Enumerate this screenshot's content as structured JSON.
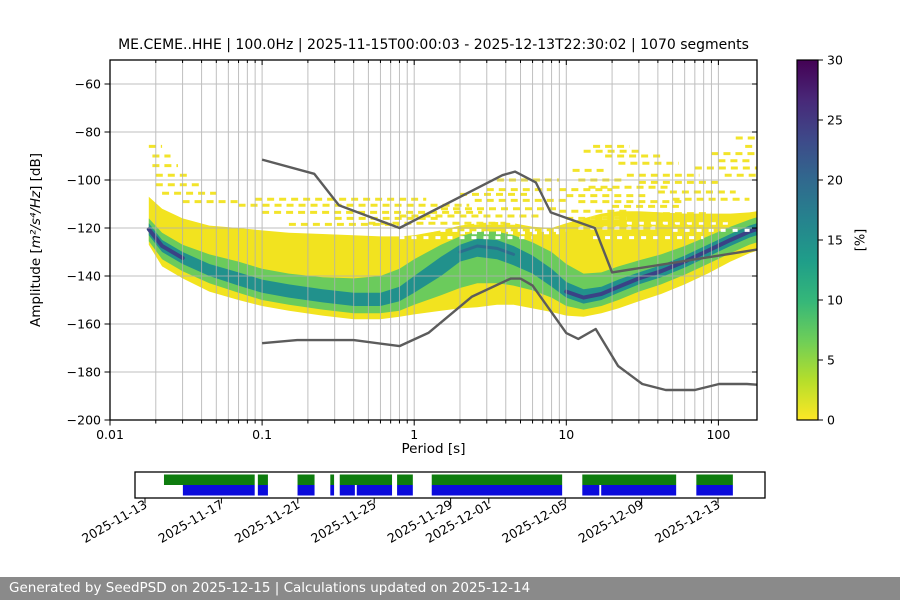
{
  "title": "ME.CEME..HHE | 100.0Hz | 2025-11-15T00:00:03 - 2025-12-13T22:30:02 | 1070 segments",
  "footer": {
    "text": "Generated by SeedPSD on 2025-12-15 | Calculations updated on 2025-12-14"
  },
  "chart_data": {
    "type": "heatmap",
    "title": "ME.CEME..HHE | 100.0Hz | 2025-11-15T00:00:03 - 2025-12-13T22:30:02 | 1070 segments",
    "xlabel": "Period [s]",
    "ylabel": "Amplitude [m²/s⁴/Hz] [dB]",
    "ylabel_parts": {
      "prefix": "Amplitude [",
      "math": "m²/s⁴/Hz",
      "suffix": "] [dB]"
    },
    "xscale": "log",
    "xlim": [
      0.01,
      179
    ],
    "ylim": [
      -200,
      -50
    ],
    "grid": true,
    "x_ticks": [
      {
        "v": 0.01,
        "label": "0.01"
      },
      {
        "v": 0.1,
        "label": "0.1"
      },
      {
        "v": 1,
        "label": "1"
      },
      {
        "v": 10,
        "label": "10"
      },
      {
        "v": 100,
        "label": "100"
      }
    ],
    "y_ticks": [
      {
        "v": -60,
        "label": "−60"
      },
      {
        "v": -80,
        "label": "−80"
      },
      {
        "v": -100,
        "label": "−100"
      },
      {
        "v": -120,
        "label": "−120"
      },
      {
        "v": -140,
        "label": "−140"
      },
      {
        "v": -160,
        "label": "−160"
      },
      {
        "v": -180,
        "label": "−180"
      },
      {
        "v": -200,
        "label": "−200"
      }
    ],
    "colorbar": {
      "label": "[%]",
      "min": 0,
      "max": 30,
      "ticks": [
        {
          "v": 0,
          "label": "0"
        },
        {
          "v": 5,
          "label": "5"
        },
        {
          "v": 10,
          "label": "10"
        },
        {
          "v": 15,
          "label": "15"
        },
        {
          "v": 20,
          "label": "20"
        },
        {
          "v": 25,
          "label": "25"
        },
        {
          "v": 30,
          "label": "30"
        }
      ],
      "colormap": "viridis_r",
      "gradient": [
        [
          0,
          "#fde725"
        ],
        [
          11,
          "#b5de2b"
        ],
        [
          22,
          "#6ece58"
        ],
        [
          33,
          "#35b779"
        ],
        [
          44,
          "#1f9e89"
        ],
        [
          56,
          "#26828e"
        ],
        [
          67,
          "#31688e"
        ],
        [
          78,
          "#3e4989"
        ],
        [
          89,
          "#482878"
        ],
        [
          100,
          "#440154"
        ]
      ]
    },
    "colors": {
      "yellow": "#f2e31f",
      "green": "#6bcb5c",
      "teal": "#21918c",
      "dark_core": "#3a4286",
      "mid_core": "#2a6f8e",
      "noise_model": "#5c5c5c",
      "grid": "#b0b0b0"
    },
    "psd_profile_columns": [
      "period_s",
      "yellow_top_db",
      "green_top_db",
      "teal_top_db",
      "mode_db",
      "teal_bot_db",
      "green_bot_db",
      "yellow_bot_db"
    ],
    "psd_profile": [
      [
        0.018,
        -107,
        -116,
        -118,
        -120.5,
        -123,
        -125.5,
        -127
      ],
      [
        0.022,
        -112,
        -122,
        -125,
        -127.5,
        -130,
        -133,
        -136
      ],
      [
        0.03,
        -116,
        -127,
        -130,
        -132.5,
        -135,
        -138,
        -141
      ],
      [
        0.045,
        -119,
        -131,
        -135,
        -137.5,
        -140,
        -143,
        -146.5
      ],
      [
        0.07,
        -120,
        -134,
        -138.5,
        -141.5,
        -144,
        -147,
        -150
      ],
      [
        0.1,
        -121,
        -137,
        -141.5,
        -144.5,
        -147,
        -150,
        -152.5
      ],
      [
        0.15,
        -122,
        -139,
        -143.5,
        -146.5,
        -149,
        -152,
        -154.5
      ],
      [
        0.25,
        -122.5,
        -140.5,
        -145.5,
        -148.5,
        -151,
        -154,
        -156.5
      ],
      [
        0.4,
        -123,
        -141,
        -147,
        -150,
        -152.5,
        -155.5,
        -158
      ],
      [
        0.6,
        -123.5,
        -140,
        -147,
        -150,
        -152.5,
        -155.5,
        -158
      ],
      [
        0.8,
        -123.5,
        -137,
        -144.5,
        -147.5,
        -150.5,
        -154.5,
        -157
      ],
      [
        1.0,
        -123,
        -133,
        -140,
        -143.5,
        -147,
        -152,
        -156
      ],
      [
        1.5,
        -121,
        -127,
        -132,
        -136,
        -140,
        -148,
        -154.5
      ],
      [
        2.0,
        -119,
        -123.5,
        -127,
        -130,
        -134,
        -145,
        -153.5
      ],
      [
        2.6,
        -118,
        -121.5,
        -124.5,
        -127.5,
        -132,
        -143,
        -153
      ],
      [
        3.5,
        -117.5,
        -121.5,
        -125,
        -128.5,
        -133,
        -143,
        -152
      ],
      [
        4.5,
        -118,
        -123,
        -127.5,
        -131,
        -135.5,
        -144,
        -152
      ],
      [
        6.0,
        -119.5,
        -126,
        -131.5,
        -135.5,
        -139,
        -146,
        -153.5
      ],
      [
        8.0,
        -120,
        -130,
        -137,
        -141.5,
        -144.5,
        -149,
        -155
      ],
      [
        10,
        -118,
        -135,
        -142.5,
        -146.5,
        -149,
        -152.5,
        -156.5
      ],
      [
        13,
        -116,
        -139,
        -145.5,
        -149,
        -151.5,
        -154,
        -157
      ],
      [
        17,
        -114,
        -138.5,
        -144.5,
        -147.5,
        -150,
        -152.5,
        -155.5
      ],
      [
        22,
        -113,
        -136,
        -141.5,
        -144.5,
        -147,
        -150,
        -153.5
      ],
      [
        30,
        -113,
        -133.5,
        -138.5,
        -141,
        -143.5,
        -146.5,
        -150.5
      ],
      [
        42,
        -113.5,
        -131,
        -135.5,
        -138,
        -140.5,
        -143.5,
        -147.5
      ],
      [
        60,
        -114,
        -127.5,
        -131.5,
        -134,
        -136.5,
        -139.5,
        -143.5
      ],
      [
        85,
        -114,
        -123.5,
        -127,
        -129.5,
        -132,
        -135,
        -139
      ],
      [
        120,
        -114,
        -119.5,
        -122.5,
        -125,
        -127.5,
        -130.5,
        -134
      ],
      [
        160,
        -113.5,
        -116.5,
        -119,
        -121.5,
        -124,
        -127,
        -130.5
      ],
      [
        179,
        -113,
        -115.5,
        -118,
        -120.5,
        -123,
        -126,
        -129.5
      ]
    ],
    "dark_core_segments": [
      [
        0.018,
        0.04
      ],
      [
        8.5,
        179
      ]
    ],
    "mid_core_segments": [
      [
        1.6,
        5.0
      ]
    ],
    "yellow_streaks": [
      [
        0.018,
        0.022,
        -86
      ],
      [
        0.019,
        0.025,
        -90
      ],
      [
        0.019,
        0.028,
        -94
      ],
      [
        0.02,
        0.032,
        -98
      ],
      [
        0.02,
        0.04,
        -102
      ],
      [
        0.022,
        0.05,
        -105.5
      ],
      [
        0.03,
        0.07,
        -109
      ],
      [
        0.07,
        2.3,
        -110.5
      ],
      [
        0.09,
        1.2,
        -108
      ],
      [
        0.1,
        2.8,
        -113.5
      ],
      [
        0.3,
        1.5,
        -116
      ],
      [
        0.15,
        0.8,
        -118.5
      ],
      [
        0.5,
        4,
        -118
      ],
      [
        0.8,
        7,
        -115
      ],
      [
        1.5,
        9,
        -112
      ],
      [
        2.5,
        10,
        -108.5
      ],
      [
        3,
        8,
        -104
      ],
      [
        3.5,
        9,
        -100
      ],
      [
        2,
        6,
        -106
      ],
      [
        9,
        20,
        -104
      ],
      [
        11,
        18,
        -96
      ],
      [
        13,
        30,
        -88
      ],
      [
        15,
        26,
        -86
      ],
      [
        18,
        42,
        -90
      ],
      [
        22,
        55,
        -93
      ],
      [
        12,
        24,
        -100
      ],
      [
        14,
        50,
        -103
      ],
      [
        25,
        75,
        -98
      ],
      [
        30,
        100,
        -101
      ],
      [
        40,
        130,
        -105
      ],
      [
        10,
        35,
        -106.5
      ],
      [
        12,
        60,
        -109
      ],
      [
        50,
        160,
        -108
      ],
      [
        70,
        179,
        -95
      ],
      [
        90,
        179,
        -89
      ],
      [
        110,
        179,
        -98
      ],
      [
        130,
        179,
        -82.5
      ],
      [
        150,
        179,
        -86
      ],
      [
        100,
        160,
        -92
      ],
      [
        9,
        25,
        -113
      ],
      [
        10,
        40,
        -116
      ],
      [
        11,
        70,
        -119
      ],
      [
        30,
        90,
        -114
      ],
      [
        50,
        140,
        -117
      ],
      [
        20,
        55,
        -111
      ]
    ],
    "white_gaps": [
      [
        0.5,
        3,
        -121
      ],
      [
        0.8,
        6,
        -124
      ],
      [
        1,
        8,
        -118
      ],
      [
        2,
        9,
        -122
      ],
      [
        0.3,
        1.2,
        -119.5
      ],
      [
        4,
        10,
        -121
      ],
      [
        12,
        40,
        -120
      ],
      [
        15,
        80,
        -124
      ],
      [
        25,
        120,
        -118
      ],
      [
        50,
        179,
        -121
      ],
      [
        12,
        25,
        -116
      ]
    ],
    "noise_models": {
      "nhnm": [
        [
          0.1,
          -91.5
        ],
        [
          0.22,
          -97.4
        ],
        [
          0.32,
          -110.5
        ],
        [
          0.8,
          -120.0
        ],
        [
          3.8,
          -98.0
        ],
        [
          4.6,
          -96.5
        ],
        [
          6.3,
          -101.0
        ],
        [
          7.9,
          -113.5
        ],
        [
          15.4,
          -120.0
        ],
        [
          20.0,
          -138.5
        ],
        [
          179,
          -129.0
        ]
      ],
      "nlnm": [
        [
          0.1,
          -168.0
        ],
        [
          0.17,
          -166.7
        ],
        [
          0.4,
          -166.7
        ],
        [
          0.8,
          -169.2
        ],
        [
          1.24,
          -163.7
        ],
        [
          2.4,
          -148.6
        ],
        [
          4.3,
          -141.1
        ],
        [
          5.0,
          -141.1
        ],
        [
          6.0,
          -144.0
        ],
        [
          10.0,
          -163.8
        ],
        [
          12.0,
          -166.2
        ],
        [
          15.6,
          -162.1
        ],
        [
          21.9,
          -177.5
        ],
        [
          31.6,
          -185.0
        ],
        [
          45.0,
          -187.5
        ],
        [
          70.0,
          -187.5
        ],
        [
          101.0,
          -185.0
        ],
        [
          154.0,
          -185.0
        ],
        [
          179.0,
          -185.3
        ]
      ]
    },
    "availability": {
      "date_ticks": [
        {
          "label": "2025-11-13",
          "day": 0
        },
        {
          "label": "2025-11-17",
          "day": 4
        },
        {
          "label": "2025-11-21",
          "day": 8
        },
        {
          "label": "2025-11-25",
          "day": 12
        },
        {
          "label": "2025-11-29",
          "day": 16
        },
        {
          "label": "2025-12-01",
          "day": 18
        },
        {
          "label": "2025-12-05",
          "day": 22
        },
        {
          "label": "2025-12-09",
          "day": 26
        },
        {
          "label": "2025-12-13",
          "day": 30
        }
      ],
      "green_color": "#0e7c0e",
      "blue_color": "#0b0bdc",
      "green_segments_pct": [
        [
          4.6,
          19.0
        ],
        [
          19.5,
          21.1
        ],
        [
          25.8,
          28.5
        ],
        [
          31.0,
          31.6
        ],
        [
          32.5,
          40.8
        ],
        [
          41.6,
          44.1
        ],
        [
          47.1,
          67.8
        ],
        [
          71.0,
          85.9
        ],
        [
          89.1,
          94.9
        ]
      ],
      "blue_segments_pct": [
        [
          7.6,
          19.0
        ],
        [
          19.5,
          21.1
        ],
        [
          25.8,
          28.5
        ],
        [
          31.0,
          31.6
        ],
        [
          32.5,
          34.9
        ],
        [
          35.2,
          40.8
        ],
        [
          41.6,
          44.1
        ],
        [
          47.1,
          67.8
        ],
        [
          71.0,
          73.7
        ],
        [
          74.0,
          85.9
        ],
        [
          89.1,
          94.9
        ]
      ]
    }
  }
}
